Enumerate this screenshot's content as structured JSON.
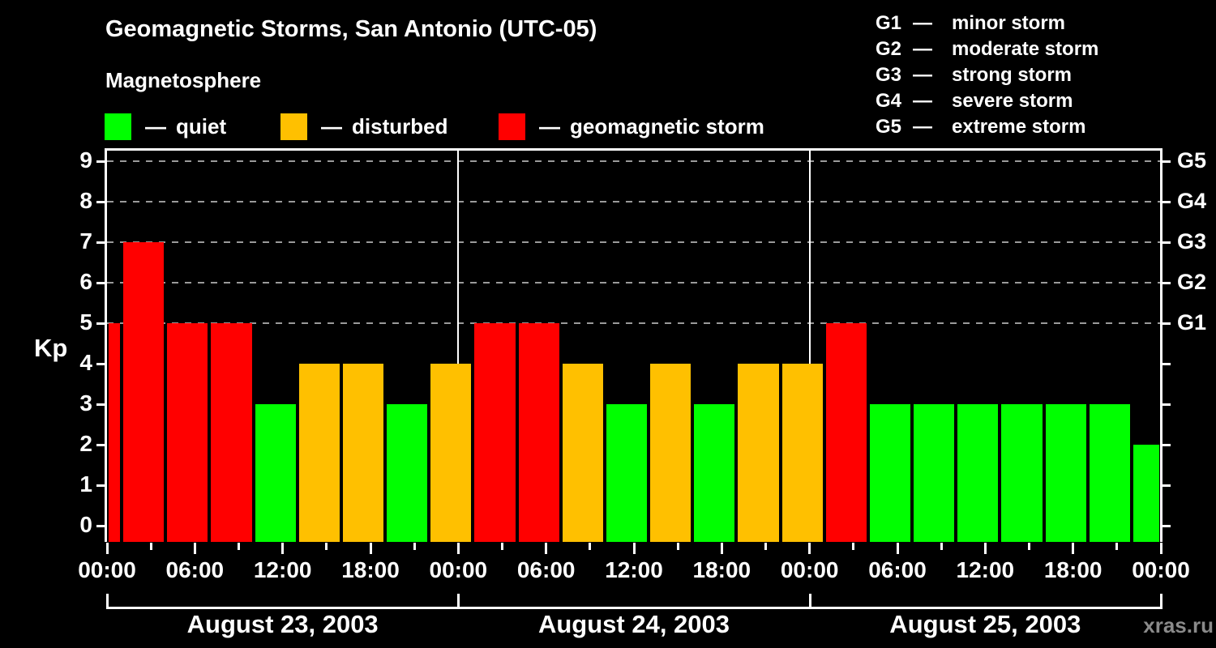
{
  "header": {
    "title": "Geomagnetic Storms, San Antonio (UTC-05)",
    "subtitle": "Magnetosphere"
  },
  "legend": {
    "separator": "—",
    "items": [
      {
        "key": "quiet",
        "label": "quiet",
        "color": "#00FF00"
      },
      {
        "key": "disturbed",
        "label": "disturbed",
        "color": "#FFC000"
      },
      {
        "key": "storm",
        "label": "geomagnetic storm",
        "color": "#FF0000"
      }
    ]
  },
  "g_legend": {
    "separator": "—",
    "items": [
      {
        "code": "G1",
        "label": "minor storm"
      },
      {
        "code": "G2",
        "label": "moderate storm"
      },
      {
        "code": "G3",
        "label": "strong storm"
      },
      {
        "code": "G4",
        "label": "severe storm"
      },
      {
        "code": "G5",
        "label": "extreme storm"
      }
    ]
  },
  "watermark": "xras.ru",
  "chart_data": {
    "type": "bar",
    "title": "Geomagnetic Storms, San Antonio (UTC-05)",
    "ylabel": "Kp",
    "ylim": [
      0,
      9
    ],
    "y_ticks": [
      0,
      1,
      2,
      3,
      4,
      5,
      6,
      7,
      8,
      9
    ],
    "grid_levels": [
      5,
      6,
      7,
      8,
      9
    ],
    "right_axis": {
      "kp_levels": [
        5,
        6,
        7,
        8,
        9
      ],
      "labels": [
        "G1",
        "G2",
        "G3",
        "G4",
        "G5"
      ]
    },
    "x_hours_range": [
      0,
      72
    ],
    "x_major_ticks": [
      {
        "hour": 0,
        "label": "00:00"
      },
      {
        "hour": 6,
        "label": "06:00"
      },
      {
        "hour": 12,
        "label": "12:00"
      },
      {
        "hour": 18,
        "label": "18:00"
      },
      {
        "hour": 24,
        "label": "00:00"
      },
      {
        "hour": 30,
        "label": "06:00"
      },
      {
        "hour": 36,
        "label": "12:00"
      },
      {
        "hour": 42,
        "label": "18:00"
      },
      {
        "hour": 48,
        "label": "00:00"
      },
      {
        "hour": 54,
        "label": "06:00"
      },
      {
        "hour": 60,
        "label": "12:00"
      },
      {
        "hour": 66,
        "label": "18:00"
      },
      {
        "hour": 72,
        "label": "00:00"
      }
    ],
    "x_minor_ticks_hours": [
      3,
      9,
      15,
      21,
      27,
      33,
      39,
      45,
      51,
      57,
      63,
      69
    ],
    "day_separator_hours": [
      24,
      48
    ],
    "days": [
      {
        "label": "August 23, 2003",
        "start_hour": 0,
        "end_hour": 24
      },
      {
        "label": "August 24, 2003",
        "start_hour": 24,
        "end_hour": 48
      },
      {
        "label": "August 25, 2003",
        "start_hour": 48,
        "end_hour": 72
      }
    ],
    "status_colors": {
      "quiet": "#00FF00",
      "disturbed": "#FFC000",
      "storm": "#FF0000"
    },
    "bars": [
      {
        "start_hour": 0,
        "end_hour": 1,
        "kp": 5,
        "status": "storm"
      },
      {
        "start_hour": 1,
        "end_hour": 4,
        "kp": 7,
        "status": "storm"
      },
      {
        "start_hour": 4,
        "end_hour": 7,
        "kp": 5,
        "status": "storm"
      },
      {
        "start_hour": 7,
        "end_hour": 10,
        "kp": 5,
        "status": "storm"
      },
      {
        "start_hour": 10,
        "end_hour": 13,
        "kp": 3,
        "status": "quiet"
      },
      {
        "start_hour": 13,
        "end_hour": 16,
        "kp": 4,
        "status": "disturbed"
      },
      {
        "start_hour": 16,
        "end_hour": 19,
        "kp": 4,
        "status": "disturbed"
      },
      {
        "start_hour": 19,
        "end_hour": 22,
        "kp": 3,
        "status": "quiet"
      },
      {
        "start_hour": 22,
        "end_hour": 25,
        "kp": 4,
        "status": "disturbed"
      },
      {
        "start_hour": 25,
        "end_hour": 28,
        "kp": 5,
        "status": "storm"
      },
      {
        "start_hour": 28,
        "end_hour": 31,
        "kp": 5,
        "status": "storm"
      },
      {
        "start_hour": 31,
        "end_hour": 34,
        "kp": 4,
        "status": "disturbed"
      },
      {
        "start_hour": 34,
        "end_hour": 37,
        "kp": 3,
        "status": "quiet"
      },
      {
        "start_hour": 37,
        "end_hour": 40,
        "kp": 4,
        "status": "disturbed"
      },
      {
        "start_hour": 40,
        "end_hour": 43,
        "kp": 3,
        "status": "quiet"
      },
      {
        "start_hour": 43,
        "end_hour": 46,
        "kp": 4,
        "status": "disturbed"
      },
      {
        "start_hour": 46,
        "end_hour": 49,
        "kp": 4,
        "status": "disturbed"
      },
      {
        "start_hour": 49,
        "end_hour": 52,
        "kp": 5,
        "status": "storm"
      },
      {
        "start_hour": 52,
        "end_hour": 55,
        "kp": 3,
        "status": "quiet"
      },
      {
        "start_hour": 55,
        "end_hour": 58,
        "kp": 3,
        "status": "quiet"
      },
      {
        "start_hour": 58,
        "end_hour": 61,
        "kp": 3,
        "status": "quiet"
      },
      {
        "start_hour": 61,
        "end_hour": 64,
        "kp": 3,
        "status": "quiet"
      },
      {
        "start_hour": 64,
        "end_hour": 67,
        "kp": 3,
        "status": "quiet"
      },
      {
        "start_hour": 67,
        "end_hour": 70,
        "kp": 3,
        "status": "quiet"
      },
      {
        "start_hour": 70,
        "end_hour": 72,
        "kp": 2,
        "status": "quiet"
      }
    ]
  }
}
